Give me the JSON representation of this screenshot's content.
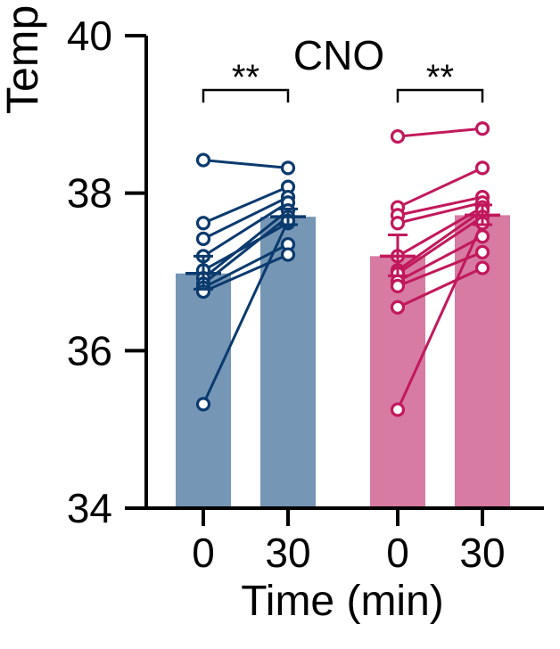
{
  "chart_data": {
    "type": "bar",
    "title": "CNO",
    "ylabel": "Temp",
    "xlabel": "Time (min)",
    "ylim": [
      34,
      40
    ],
    "yticks": [
      34,
      36,
      38,
      40
    ],
    "categories": [
      "0",
      "30",
      "0",
      "30"
    ],
    "significance": [
      {
        "label": "**",
        "between": [
          0,
          1
        ]
      },
      {
        "label": "**",
        "between": [
          2,
          3
        ]
      }
    ],
    "groups": [
      {
        "color": "#0b3a6e",
        "bar_color": "#7596b5",
        "bars": [
          {
            "category": "0",
            "value": 36.98,
            "mean": 36.98,
            "sem_low": 36.78,
            "sem_high": 37.2
          },
          {
            "category": "30",
            "value": 37.7,
            "mean": 37.7,
            "sem_low": 37.6,
            "sem_high": 37.8
          }
        ],
        "pairs": [
          [
            38.42,
            38.32
          ],
          [
            37.62,
            38.08
          ],
          [
            37.42,
            37.95
          ],
          [
            37.2,
            37.88
          ],
          [
            37.02,
            37.62
          ],
          [
            36.92,
            37.78
          ],
          [
            36.85,
            37.7
          ],
          [
            36.8,
            37.35
          ],
          [
            36.75,
            37.22
          ],
          [
            35.32,
            37.65
          ]
        ]
      },
      {
        "color": "#c2185b",
        "bar_color": "#d77ba2",
        "bars": [
          {
            "category": "0",
            "value": 37.2,
            "mean": 37.2,
            "sem_low": 36.95,
            "sem_high": 37.47
          },
          {
            "category": "30",
            "value": 37.72,
            "mean": 37.72,
            "sem_low": 37.6,
            "sem_high": 37.85
          }
        ],
        "pairs": [
          [
            38.72,
            38.82
          ],
          [
            37.82,
            38.32
          ],
          [
            37.72,
            37.95
          ],
          [
            37.62,
            37.88
          ],
          [
            37.2,
            37.82
          ],
          [
            37.02,
            37.78
          ],
          [
            36.98,
            37.7
          ],
          [
            36.88,
            37.45
          ],
          [
            36.82,
            37.25
          ],
          [
            36.55,
            37.05
          ],
          [
            35.25,
            37.62
          ]
        ]
      }
    ]
  }
}
